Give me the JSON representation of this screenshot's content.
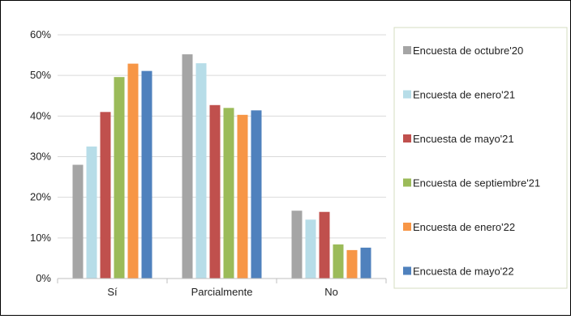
{
  "chart_data": {
    "type": "bar",
    "categories": [
      "Sí",
      "Parcialmente",
      "No"
    ],
    "series": [
      {
        "name": "Encuesta de octubre'20",
        "color": "#a5a5a5",
        "values": [
          28,
          55.2,
          16.7
        ]
      },
      {
        "name": "Encuesta de enero'21",
        "color": "#b7dde8",
        "values": [
          32.5,
          53,
          14.5
        ]
      },
      {
        "name": "Encuesta de mayo'21",
        "color": "#c0504d",
        "values": [
          41,
          42.7,
          16.4
        ]
      },
      {
        "name": "Encuesta de septiembre'21",
        "color": "#9bbb59",
        "values": [
          49.6,
          42,
          8.4
        ]
      },
      {
        "name": "Encuesta de enero'22",
        "color": "#f79646",
        "values": [
          52.9,
          40.3,
          7
        ]
      },
      {
        "name": "Encuesta de mayo'22",
        "color": "#4f81bd",
        "values": [
          51.1,
          41.4,
          7.6
        ]
      }
    ],
    "yticks": [
      "0%",
      "10%",
      "20%",
      "30%",
      "40%",
      "50%",
      "60%"
    ],
    "ylim": [
      0,
      60
    ],
    "grid": true,
    "legend_position": "right"
  }
}
